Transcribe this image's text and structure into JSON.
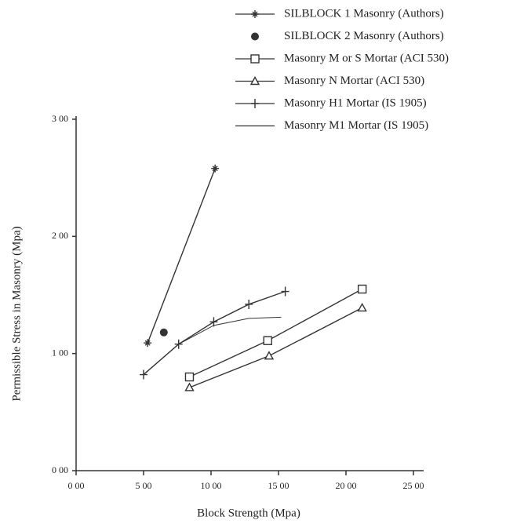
{
  "chart_data": {
    "type": "line",
    "x_label": "Block Strength (Mpa)",
    "y_label": "Permissible Stress in Masonry (Mpa)",
    "xlim": [
      0,
      25
    ],
    "ylim": [
      0,
      3
    ],
    "xticks": [
      {
        "value": 0,
        "label": "0 00"
      },
      {
        "value": 5,
        "label": "5 00"
      },
      {
        "value": 10,
        "label": "10 00"
      },
      {
        "value": 15,
        "label": "15 00"
      },
      {
        "value": 20,
        "label": "20 00"
      },
      {
        "value": 25,
        "label": "25 00"
      }
    ],
    "yticks": [
      {
        "value": 0,
        "label": "0 00"
      },
      {
        "value": 1,
        "label": "1 00"
      },
      {
        "value": 2,
        "label": "2 00"
      },
      {
        "value": 3,
        "label": "3 00"
      }
    ],
    "series": [
      {
        "name": "SILBLOCK 1 Masonry (Authors)",
        "color": "#333333",
        "marker": "star",
        "x": [
          5.3,
          10.3
        ],
        "values": [
          1.09,
          2.58
        ]
      },
      {
        "name": "SILBLOCK 2 Masonry (Authors)",
        "color": "#333333",
        "marker": "dot",
        "x": [
          6.5
        ],
        "values": [
          1.18
        ]
      },
      {
        "name": "Masonry M or S Mortar (ACI 530)",
        "color": "#333333",
        "marker": "square",
        "x": [
          8.4,
          14.2,
          21.2
        ],
        "values": [
          0.8,
          1.11,
          1.55
        ]
      },
      {
        "name": "Masonry N Mortar (ACI 530)",
        "color": "#333333",
        "marker": "triangle",
        "x": [
          8.4,
          14.3,
          21.2
        ],
        "values": [
          0.71,
          0.98,
          1.39
        ]
      },
      {
        "name": "Masonry H1 Mortar (IS 1905)",
        "color": "#333333",
        "marker": "plus",
        "x": [
          5.0,
          7.6,
          10.2,
          12.8,
          15.5
        ],
        "values": [
          0.82,
          1.08,
          1.27,
          1.42,
          1.53
        ]
      },
      {
        "name": "Masonry M1 Mortar (IS 1905)",
        "color": "#333333",
        "marker": "none",
        "x": [
          7.6,
          10.2,
          12.8,
          15.2
        ],
        "values": [
          1.08,
          1.24,
          1.3,
          1.31
        ]
      }
    ]
  }
}
